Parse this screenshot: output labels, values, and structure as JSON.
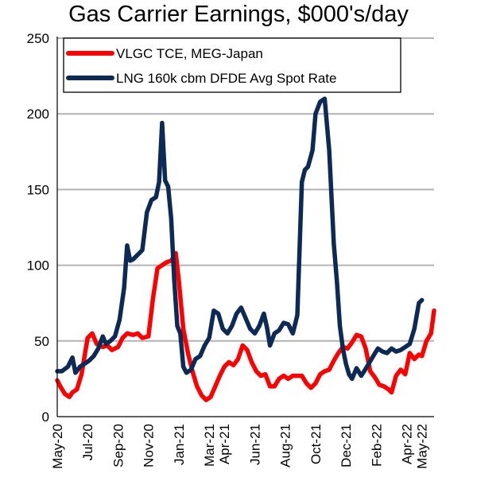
{
  "chart_data": {
    "type": "line",
    "title": "Gas Carrier Earnings, $000's/day",
    "xlabel": "",
    "ylabel": "",
    "ylim": [
      0,
      250
    ],
    "yticks": [
      0,
      50,
      100,
      150,
      200,
      250
    ],
    "grid": true,
    "legend_position": "top-left",
    "x_tick_labels": [
      "May-20",
      "Jul-20",
      "Sep-20",
      "Nov-20",
      "Jan-21",
      "Mar-21",
      "Apr-21",
      "Jun-21",
      "Aug-21",
      "Oct-21",
      "Dec-21",
      "Feb-22",
      "Apr-22",
      "May-22"
    ],
    "x_tick_months": [
      0,
      2,
      4,
      6,
      8,
      10,
      11,
      13,
      15,
      17,
      19,
      21,
      23,
      24
    ],
    "series": [
      {
        "name": "VLGC TCE, MEG-Japan",
        "color": "#ff0000",
        "points": [
          [
            0,
            24
          ],
          [
            0.2,
            20
          ],
          [
            0.5,
            15
          ],
          [
            0.8,
            13
          ],
          [
            1.0,
            16
          ],
          [
            1.3,
            18
          ],
          [
            1.6,
            28
          ],
          [
            1.8,
            40
          ],
          [
            2.0,
            52
          ],
          [
            2.3,
            55
          ],
          [
            2.6,
            48
          ],
          [
            3.0,
            46
          ],
          [
            3.3,
            47
          ],
          [
            3.6,
            44
          ],
          [
            4.0,
            46
          ],
          [
            4.3,
            52
          ],
          [
            4.6,
            55
          ],
          [
            5.0,
            54
          ],
          [
            5.3,
            55
          ],
          [
            5.6,
            52
          ],
          [
            6.0,
            53
          ],
          [
            6.3,
            78
          ],
          [
            6.6,
            98
          ],
          [
            6.9,
            100
          ],
          [
            7.2,
            102
          ],
          [
            7.5,
            103
          ],
          [
            7.8,
            108
          ],
          [
            8.0,
            90
          ],
          [
            8.3,
            58
          ],
          [
            8.6,
            42
          ],
          [
            8.9,
            30
          ],
          [
            9.2,
            20
          ],
          [
            9.5,
            14
          ],
          [
            9.8,
            11
          ],
          [
            10.1,
            13
          ],
          [
            10.4,
            20
          ],
          [
            10.7,
            27
          ],
          [
            11.0,
            33
          ],
          [
            11.3,
            36
          ],
          [
            11.6,
            34
          ],
          [
            11.9,
            38
          ],
          [
            12.2,
            47
          ],
          [
            12.5,
            44
          ],
          [
            12.8,
            36
          ],
          [
            13.1,
            30
          ],
          [
            13.4,
            27
          ],
          [
            13.7,
            28
          ],
          [
            14.0,
            20
          ],
          [
            14.3,
            20
          ],
          [
            14.6,
            25
          ],
          [
            14.9,
            27
          ],
          [
            15.2,
            25
          ],
          [
            15.5,
            27
          ],
          [
            15.8,
            27
          ],
          [
            16.1,
            27
          ],
          [
            16.4,
            22
          ],
          [
            16.7,
            19
          ],
          [
            17.0,
            22
          ],
          [
            17.3,
            28
          ],
          [
            17.6,
            30
          ],
          [
            17.9,
            31
          ],
          [
            18.2,
            37
          ],
          [
            18.5,
            42
          ],
          [
            18.8,
            46
          ],
          [
            19.1,
            45
          ],
          [
            19.4,
            49
          ],
          [
            19.7,
            54
          ],
          [
            20.0,
            53
          ],
          [
            20.3,
            45
          ],
          [
            20.6,
            30
          ],
          [
            20.9,
            26
          ],
          [
            21.2,
            21
          ],
          [
            21.5,
            20
          ],
          [
            21.8,
            18
          ],
          [
            22.0,
            16
          ],
          [
            22.3,
            27
          ],
          [
            22.6,
            31
          ],
          [
            22.9,
            28
          ],
          [
            23.2,
            42
          ],
          [
            23.5,
            38
          ],
          [
            23.8,
            41
          ],
          [
            24.0,
            40
          ],
          [
            24.3,
            50
          ],
          [
            24.6,
            55
          ],
          [
            24.8,
            70
          ]
        ]
      },
      {
        "name": "LNG 160k cbm DFDE Avg Spot Rate",
        "color": "#0d2a57",
        "points": [
          [
            0,
            30
          ],
          [
            0.3,
            30
          ],
          [
            0.7,
            33
          ],
          [
            1.0,
            39
          ],
          [
            1.2,
            29
          ],
          [
            1.5,
            33
          ],
          [
            1.8,
            35
          ],
          [
            2.1,
            37
          ],
          [
            2.4,
            40
          ],
          [
            2.7,
            45
          ],
          [
            3.0,
            53
          ],
          [
            3.2,
            48
          ],
          [
            3.5,
            50
          ],
          [
            3.8,
            53
          ],
          [
            4.1,
            64
          ],
          [
            4.4,
            85
          ],
          [
            4.6,
            113
          ],
          [
            4.8,
            103
          ],
          [
            5.0,
            104
          ],
          [
            5.3,
            107
          ],
          [
            5.6,
            110
          ],
          [
            5.9,
            135
          ],
          [
            6.2,
            143
          ],
          [
            6.5,
            145
          ],
          [
            6.7,
            155
          ],
          [
            6.9,
            194
          ],
          [
            7.1,
            156
          ],
          [
            7.3,
            152
          ],
          [
            7.5,
            131
          ],
          [
            7.7,
            90
          ],
          [
            7.9,
            60
          ],
          [
            8.1,
            55
          ],
          [
            8.3,
            33
          ],
          [
            8.5,
            29
          ],
          [
            8.8,
            31
          ],
          [
            9.1,
            38
          ],
          [
            9.4,
            40
          ],
          [
            9.7,
            47
          ],
          [
            10.0,
            52
          ],
          [
            10.3,
            70
          ],
          [
            10.6,
            68
          ],
          [
            10.9,
            58
          ],
          [
            11.2,
            55
          ],
          [
            11.5,
            60
          ],
          [
            11.8,
            68
          ],
          [
            12.1,
            72
          ],
          [
            12.4,
            65
          ],
          [
            12.7,
            58
          ],
          [
            13.0,
            55
          ],
          [
            13.3,
            60
          ],
          [
            13.6,
            68
          ],
          [
            13.8,
            59
          ],
          [
            14.0,
            47
          ],
          [
            14.3,
            55
          ],
          [
            14.6,
            57
          ],
          [
            14.9,
            62
          ],
          [
            15.2,
            61
          ],
          [
            15.5,
            55
          ],
          [
            15.8,
            67
          ],
          [
            16.1,
            155
          ],
          [
            16.3,
            163
          ],
          [
            16.5,
            165
          ],
          [
            16.8,
            176
          ],
          [
            17.0,
            200
          ],
          [
            17.3,
            208
          ],
          [
            17.6,
            210
          ],
          [
            17.9,
            176
          ],
          [
            18.2,
            114
          ],
          [
            18.4,
            90
          ],
          [
            18.6,
            60
          ],
          [
            18.8,
            45
          ],
          [
            19.0,
            35
          ],
          [
            19.2,
            28
          ],
          [
            19.4,
            25
          ],
          [
            19.7,
            32
          ],
          [
            20.0,
            27
          ],
          [
            20.2,
            30
          ],
          [
            20.5,
            35
          ],
          [
            20.8,
            40
          ],
          [
            21.1,
            45
          ],
          [
            21.4,
            43
          ],
          [
            21.7,
            42
          ],
          [
            22.0,
            45
          ],
          [
            22.3,
            43
          ],
          [
            22.6,
            44
          ],
          [
            22.9,
            46
          ],
          [
            23.2,
            48
          ],
          [
            23.5,
            58
          ],
          [
            23.8,
            75
          ],
          [
            24.0,
            77
          ]
        ]
      }
    ]
  }
}
